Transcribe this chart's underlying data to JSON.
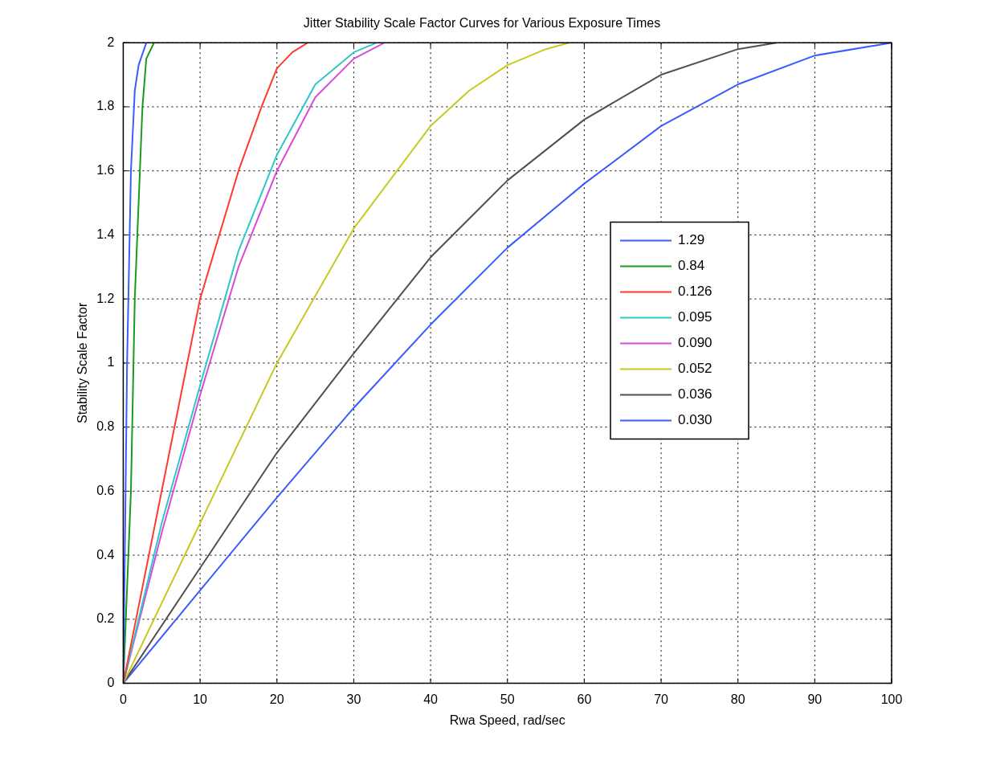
{
  "chart_data": {
    "type": "line",
    "title": "Jitter Stability Scale Factor Curves for Various Exposure Times",
    "xlabel": "Rwa Speed, rad/sec",
    "ylabel": "Stability Scale Factor",
    "xlim": [
      0,
      100
    ],
    "xticks": [
      0,
      10,
      20,
      30,
      40,
      50,
      60,
      70,
      80,
      90,
      100
    ],
    "ylim": [
      0,
      2
    ],
    "yticks": [
      0,
      0.2,
      0.4,
      0.6,
      0.8,
      1,
      1.2,
      1.4,
      1.6,
      1.8,
      2
    ],
    "grid": true,
    "legend": "right",
    "marker": "none",
    "line_style": "solid",
    "series": [
      {
        "name": "1.29",
        "color": "#3b5bff",
        "x": [
          0,
          0.5,
          1,
          1.5,
          2,
          3
        ],
        "values": [
          0,
          1.0,
          1.6,
          1.85,
          1.93,
          2
        ]
      },
      {
        "name": "0.84",
        "color": "#1a9a1a",
        "x": [
          0,
          1,
          1.5,
          2,
          2.5,
          3,
          4
        ],
        "values": [
          0,
          0.6,
          1.2,
          1.5,
          1.8,
          1.95,
          2
        ]
      },
      {
        "name": "0.126",
        "color": "#ff3a2a",
        "x": [
          0,
          5,
          10,
          15,
          18,
          20,
          22,
          24
        ],
        "values": [
          0,
          0.6,
          1.2,
          1.6,
          1.8,
          1.92,
          1.97,
          2
        ]
      },
      {
        "name": "0.095",
        "color": "#2cc8c8",
        "x": [
          0,
          5,
          10,
          15,
          20,
          25,
          30,
          33
        ],
        "values": [
          0,
          0.5,
          0.93,
          1.35,
          1.65,
          1.87,
          1.97,
          2
        ]
      },
      {
        "name": "0.090",
        "color": "#d84ad8",
        "x": [
          0,
          5,
          10,
          15,
          20,
          25,
          30,
          34
        ],
        "values": [
          0,
          0.47,
          0.9,
          1.3,
          1.6,
          1.83,
          1.95,
          2
        ]
      },
      {
        "name": "0.052",
        "color": "#c8c81e",
        "x": [
          0,
          10,
          20,
          30,
          40,
          45,
          50,
          55,
          58
        ],
        "values": [
          0,
          0.5,
          1.0,
          1.42,
          1.74,
          1.85,
          1.93,
          1.98,
          2
        ]
      },
      {
        "name": "0.036",
        "color": "#505050",
        "x": [
          0,
          10,
          20,
          30,
          40,
          50,
          60,
          70,
          80,
          85
        ],
        "values": [
          0,
          0.36,
          0.72,
          1.03,
          1.33,
          1.57,
          1.76,
          1.9,
          1.98,
          2
        ]
      },
      {
        "name": "0.030",
        "color": "#3b5bff",
        "x": [
          0,
          10,
          20,
          30,
          40,
          50,
          60,
          70,
          80,
          90,
          100
        ],
        "values": [
          0,
          0.29,
          0.58,
          0.86,
          1.12,
          1.36,
          1.56,
          1.74,
          1.87,
          1.96,
          2
        ]
      }
    ]
  }
}
